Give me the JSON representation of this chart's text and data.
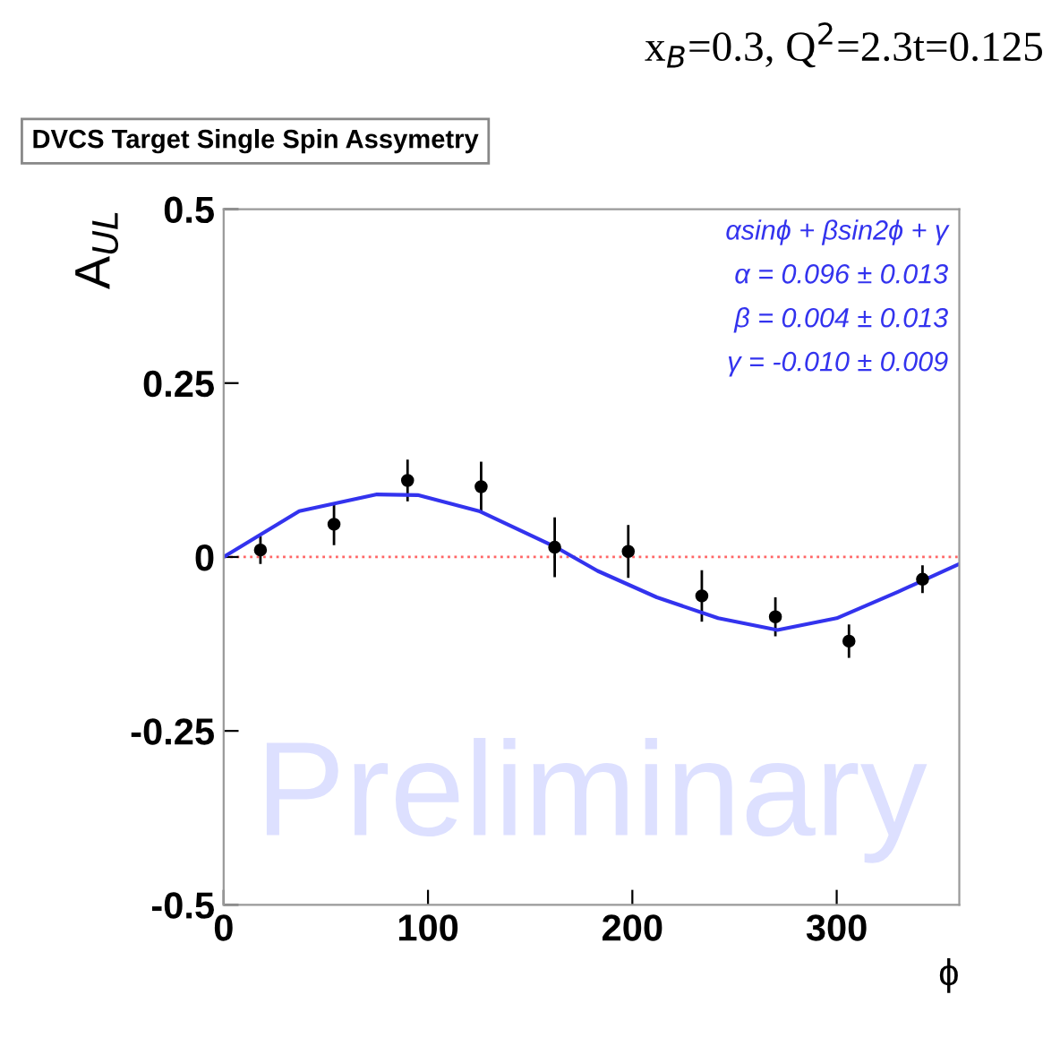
{
  "chart_data": {
    "type": "scatter",
    "title": "DVCS Target Single Spin Assymetry",
    "subtitle": "x$_{B}$=0.3, Q$^{2}$=2.3t=0.125",
    "xlabel": "ϕ",
    "ylabel": "A$_{UL}$",
    "xlim": [
      0,
      360
    ],
    "ylim": [
      -0.5,
      0.5
    ],
    "xticks": [
      0,
      100,
      200,
      300
    ],
    "yticks": [
      -0.5,
      -0.25,
      0,
      0.25,
      0.5
    ],
    "series": [
      {
        "color": "#000000",
        "marker": "circle",
        "x": [
          18,
          54,
          90,
          126,
          162,
          198,
          234,
          270,
          306,
          342
        ],
        "values": [
          0.01,
          0.047,
          0.11,
          0.101,
          0.014,
          0.008,
          -0.056,
          -0.086,
          -0.121,
          -0.032
        ],
        "errors": [
          0.02,
          0.03,
          0.03,
          0.036,
          0.043,
          0.038,
          0.037,
          0.028,
          0.024,
          0.02
        ]
      },
      {
        "type": "line",
        "color": "#3333ee",
        "marker": "none",
        "x": [
          0,
          37,
          75,
          95,
          125,
          162,
          183,
          212,
          242,
          271,
          300,
          330,
          360
        ],
        "values": [
          0,
          0.066,
          0.09,
          0.089,
          0.066,
          0.015,
          -0.02,
          -0.058,
          -0.088,
          -0.105,
          -0.088,
          -0.05,
          -0.01
        ]
      }
    ],
    "ref_lines": [
      {
        "axis": "y",
        "value": 0,
        "color": "#ff6666",
        "line_style": "dotted"
      }
    ],
    "annotations": [
      "αsinϕ + βsin2ϕ + γ",
      "α = 0.096 ± 0.013",
      "β = 0.004 ± 0.013",
      "γ = -0.010 ± 0.009",
      "Preliminary"
    ],
    "grid": false,
    "legend": false
  }
}
